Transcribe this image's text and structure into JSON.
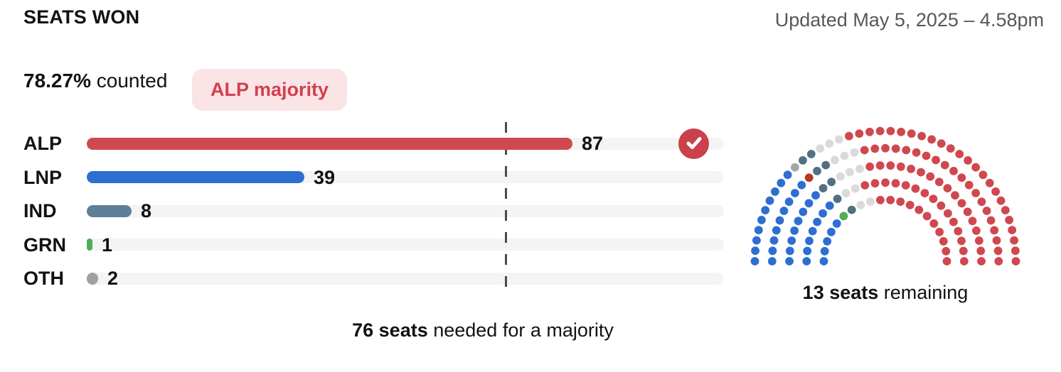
{
  "header": {
    "title": "SEATS WON",
    "updated": "Updated May 5, 2025 – 4.58pm"
  },
  "status": {
    "counted_value": "78.27%",
    "counted_label": " counted",
    "badge_label": "ALP majority"
  },
  "majority_caption": {
    "bold": "76 seats",
    "rest": " needed for a majority"
  },
  "remaining_caption": {
    "bold": "13 seats",
    "rest": " remaining"
  },
  "chart_data": [
    {
      "type": "bar",
      "title": "SEATS WON",
      "orientation": "horizontal",
      "categories": [
        "ALP",
        "LNP",
        "IND",
        "GRN",
        "OTH"
      ],
      "values": [
        87,
        39,
        8,
        1,
        2
      ],
      "series": [
        {
          "name": "ALP",
          "value": 87,
          "color": "#d0484f",
          "won_majority": true
        },
        {
          "name": "LNP",
          "value": 39,
          "color": "#2e6ed3",
          "won_majority": false
        },
        {
          "name": "IND",
          "value": 8,
          "color": "#5d7f98",
          "won_majority": false
        },
        {
          "name": "GRN",
          "value": 1,
          "color": "#4fae55",
          "won_majority": false
        },
        {
          "name": "OTH",
          "value": 2,
          "color": "#9fa1a1",
          "won_majority": false
        }
      ],
      "xlim": [
        0,
        113
      ],
      "majority_line_value": 76,
      "grid": false,
      "annotations": [
        "76 seats needed for a majority",
        "ALP majority",
        "78.27% counted"
      ]
    },
    {
      "type": "parliament",
      "total_seats": 150,
      "seats_remaining": 13,
      "annotation": "13 seats remaining",
      "party_colors": {
        "ALP": "#d0484f",
        "LNP": "#2e6ed3",
        "IND": "#507182",
        "GRN": "#4fae55",
        "OTH_GRAY": "#a5a7a7",
        "OTH_RUST": "#b23b20",
        "UNDECIDED": "#dadada"
      },
      "rows": [
        {
          "radius": 86.5,
          "segments": [
            {
              "party": "LNP",
              "count": 5
            },
            {
              "party": "GRN",
              "count": 1
            },
            {
              "party": "IND",
              "count": 1
            },
            {
              "party": "UNDECIDED",
              "count": 2
            },
            {
              "party": "ALP",
              "count": 11
            }
          ]
        },
        {
          "radius": 110.75,
          "segments": [
            {
              "party": "LNP",
              "count": 7
            },
            {
              "party": "IND",
              "count": 1
            },
            {
              "party": "UNDECIDED",
              "count": 2
            },
            {
              "party": "ALP",
              "count": 15
            }
          ]
        },
        {
          "radius": 135,
          "segments": [
            {
              "party": "LNP",
              "count": 8
            },
            {
              "party": "IND",
              "count": 2
            },
            {
              "party": "UNDECIDED",
              "count": 3
            },
            {
              "party": "ALP",
              "count": 17
            }
          ]
        },
        {
          "radius": 159.25,
          "segments": [
            {
              "party": "LNP",
              "count": 9
            },
            {
              "party": "OTH_RUST",
              "count": 1
            },
            {
              "party": "IND",
              "count": 2
            },
            {
              "party": "UNDECIDED",
              "count": 3
            },
            {
              "party": "ALP",
              "count": 20
            }
          ]
        },
        {
          "radius": 183.5,
          "segments": [
            {
              "party": "LNP",
              "count": 10
            },
            {
              "party": "OTH_GRAY",
              "count": 1
            },
            {
              "party": "IND",
              "count": 2
            },
            {
              "party": "UNDECIDED",
              "count": 3
            },
            {
              "party": "ALP",
              "count": 24
            }
          ]
        }
      ]
    }
  ],
  "colors": {
    "badge_bg": "#fbe4e6",
    "badge_text": "#d2404e",
    "track": "#f4f4f4",
    "majority_line": "#4a4a4a",
    "updated_text": "#575757",
    "text": "#121212",
    "check_circle": "#ca414b"
  }
}
